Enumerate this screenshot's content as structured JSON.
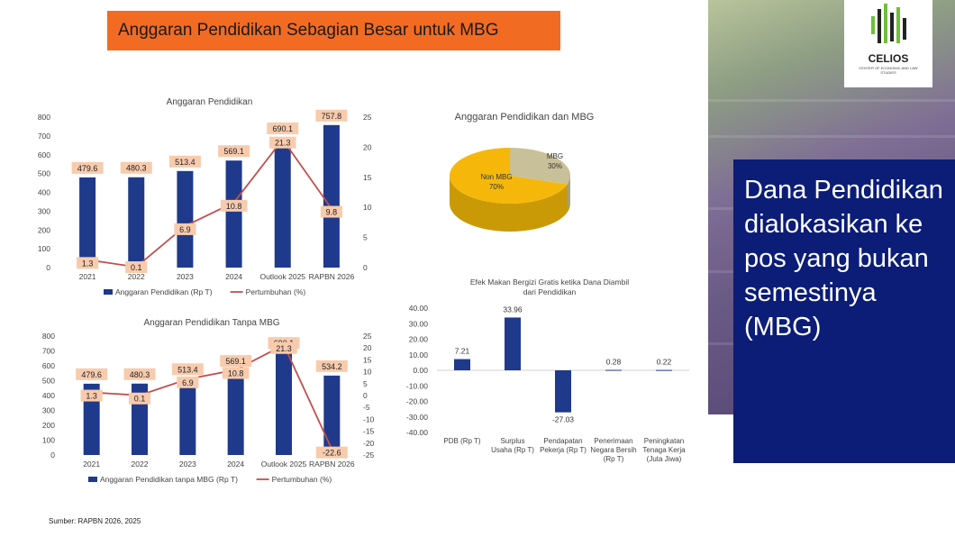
{
  "banner_title": "Anggaran Pendidikan Sebagian Besar untuk MBG",
  "logo": {
    "name": "CELIOS",
    "subtitle": "CENTER OF ECONOMIC AND LAW STUDIES"
  },
  "panel_text": "Dana Pendidikan dialokasikan ke pos yang bukan semestinya (MBG)",
  "source": "Sumber: RAPBN 2026, 2025",
  "colors": {
    "bar": "#1f3a8a",
    "line": "#c0504d",
    "label_bg": "#f8cbad",
    "banner": "#f26b22",
    "panel": "#0b1d77",
    "pie_mbg": "#c8c098",
    "pie_non": "#f5b80a"
  },
  "chart_data": [
    {
      "type": "bar",
      "title": "Anggaran Pendidikan",
      "categories": [
        "2021",
        "2022",
        "2023",
        "2024",
        "Outlook 2025",
        "RAPBN 2026"
      ],
      "series": [
        {
          "name": "Anggaran Pendidikan (Rp T)",
          "axis": "left",
          "kind": "bar",
          "values": [
            479.6,
            480.3,
            513.4,
            569.1,
            690.1,
            757.8
          ]
        },
        {
          "name": "Pertumbuhan (%)",
          "axis": "right",
          "kind": "line",
          "values": [
            1.3,
            0.1,
            6.9,
            10.8,
            21.3,
            9.8
          ]
        }
      ],
      "y_left_ticks": [
        "0",
        "100",
        "200",
        "300",
        "400",
        "500",
        "600",
        "700",
        "800"
      ],
      "y_right_ticks": [
        "0",
        "5",
        "10",
        "15",
        "20",
        "25"
      ],
      "ylim_left": [
        0,
        800
      ],
      "ylim_right": [
        0,
        25
      ],
      "legend": "bottom"
    },
    {
      "type": "bar",
      "title": "Anggaran Pendidikan Tanpa MBG",
      "categories": [
        "2021",
        "2022",
        "2023",
        "2024",
        "Outlook 2025",
        "RAPBN 2026"
      ],
      "series": [
        {
          "name": "Anggaran Pendidikan tanpa MBG (Rp T)",
          "axis": "left",
          "kind": "bar",
          "values": [
            479.6,
            480.3,
            513.4,
            569.1,
            690.1,
            534.2
          ]
        },
        {
          "name": "Pertumbuhan (%)",
          "axis": "right",
          "kind": "line",
          "values": [
            1.3,
            0.1,
            6.9,
            10.8,
            21.3,
            -22.6
          ]
        }
      ],
      "y_left_ticks": [
        "0",
        "100",
        "200",
        "300",
        "400",
        "500",
        "600",
        "700",
        "800"
      ],
      "y_right_ticks": [
        "-25",
        "-20",
        "-15",
        "-10",
        "-5",
        "0",
        "5",
        "10",
        "15",
        "20",
        "25"
      ],
      "ylim_left": [
        0,
        800
      ],
      "ylim_right": [
        -25,
        25
      ],
      "legend": "bottom"
    },
    {
      "type": "pie",
      "title": "Anggaran Pendidikan dan MBG",
      "slices": [
        {
          "label": "MBG",
          "value": 30,
          "text": "30%"
        },
        {
          "label": "Non MBG",
          "value": 70,
          "text": "70%"
        }
      ]
    },
    {
      "type": "bar",
      "title": "Efek Makan Bergizi Gratis ketika Dana Diambil dari Pendidikan",
      "categories": [
        [
          "PDB (Rp T)"
        ],
        [
          "Surplus",
          "Usaha (Rp T)"
        ],
        [
          "Pendapatan",
          "Pekerja (Rp T)"
        ],
        [
          "Penerimaan",
          "Negara Bersih",
          "(Rp T)"
        ],
        [
          "Peningkatan",
          "Tenaga Kerja",
          "(Juta Jiwa)"
        ]
      ],
      "values": [
        7.21,
        33.96,
        -27.03,
        0.28,
        0.22
      ],
      "value_labels": [
        "7.21",
        "33.96",
        "-27.03",
        "0.28",
        "0.22"
      ],
      "y_ticks": [
        "40.00",
        "30.00",
        "20.00",
        "10.00",
        "0.00",
        "-10.00",
        "-20.00",
        "-30.00",
        "-40.00"
      ],
      "ylim": [
        -40,
        40
      ]
    }
  ]
}
